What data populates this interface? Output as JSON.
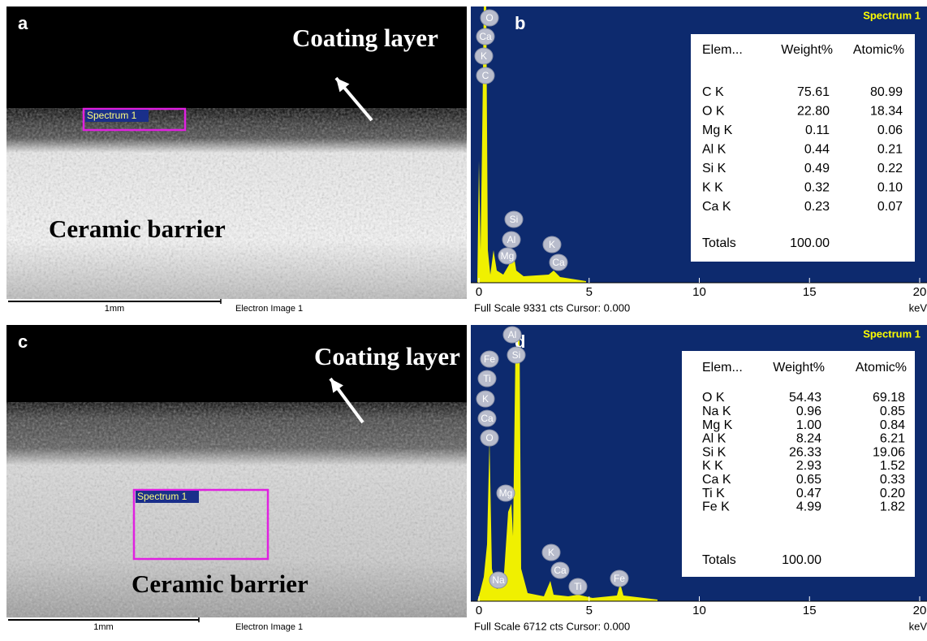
{
  "panels": [
    {
      "label": "a",
      "annotations": [
        "Coating layer",
        "Ceramic barrier"
      ],
      "box_label": "Spectrum 1",
      "scale_bar": "1mm",
      "caption": "Electron Image 1"
    },
    {
      "label": "b",
      "title": "Spectrum 1",
      "peak_labels": [
        "O",
        "Ca",
        "K",
        "C",
        "Si",
        "Al",
        "Mg",
        "K",
        "Ca"
      ],
      "xlim": [
        0,
        20
      ],
      "xticks": [
        0,
        5,
        10,
        15,
        20
      ],
      "x_unit": "keV",
      "footer": "Full Scale 9331 cts Cursor: 0.000",
      "table": {
        "header": [
          "Elem...",
          "Weight%",
          "Atomic%"
        ],
        "rows": [
          [
            "C K",
            "75.61",
            "80.99"
          ],
          [
            "O K",
            "22.80",
            "18.34"
          ],
          [
            "Mg K",
            "0.11",
            "0.06"
          ],
          [
            "Al K",
            "0.44",
            "0.21"
          ],
          [
            "Si K",
            "0.49",
            "0.22"
          ],
          [
            "K K",
            "0.32",
            "0.10"
          ],
          [
            "Ca K",
            "0.23",
            "0.07"
          ]
        ],
        "totals": [
          "Totals",
          "100.00"
        ]
      }
    },
    {
      "label": "c",
      "annotations": [
        "Coating layer",
        "Ceramic barrier"
      ],
      "box_label": "Spectrum 1",
      "scale_bar": "1mm",
      "caption": "Electron Image 1"
    },
    {
      "label": "d",
      "title": "Spectrum 1",
      "peak_labels": [
        "Al",
        "Si",
        "Fe",
        "Ti",
        "K",
        "Ca",
        "O",
        "Mg",
        "K",
        "Ca",
        "Na",
        "Ti",
        "Fe"
      ],
      "xlim": [
        0,
        20
      ],
      "xticks": [
        0,
        5,
        10,
        15,
        20
      ],
      "x_unit": "keV",
      "footer": "Full Scale 6712 cts Cursor: 0.000",
      "table": {
        "header": [
          "Elem...",
          "Weight%",
          "Atomic%"
        ],
        "rows": [
          [
            "O K",
            "54.43",
            "69.18"
          ],
          [
            "Na K",
            "0.96",
            "0.85"
          ],
          [
            "Mg K",
            "1.00",
            "0.84"
          ],
          [
            "Al K",
            "8.24",
            "6.21"
          ],
          [
            "Si K",
            "26.33",
            "19.06"
          ],
          [
            "K K",
            "2.93",
            "1.52"
          ],
          [
            "Ca K",
            "0.65",
            "0.33"
          ],
          [
            "Ti K",
            "0.47",
            "0.20"
          ],
          [
            "Fe K",
            "4.99",
            "1.82"
          ]
        ],
        "totals": [
          "Totals",
          "100.00"
        ]
      }
    }
  ]
}
